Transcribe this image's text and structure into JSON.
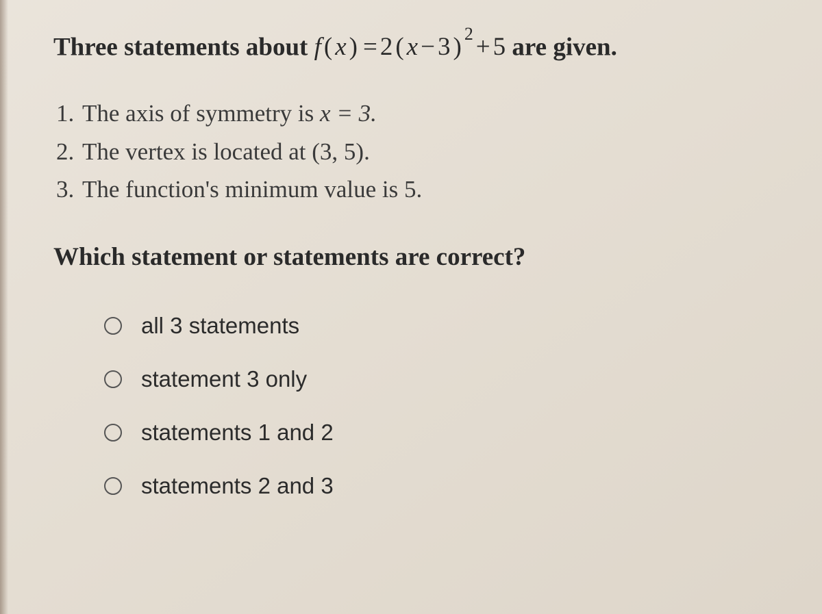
{
  "intro_prefix": "Three statements about ",
  "intro_suffix": " are given.",
  "function_expr": {
    "lhs_f": "f",
    "lhs_var": "x",
    "coef": "2",
    "inner_var": "x",
    "inner_op": "−",
    "inner_const": "3",
    "exp": "2",
    "tail_op": "+",
    "tail_const": "5"
  },
  "statements": [
    {
      "n": "1.",
      "text": "The axis of symmetry is ",
      "math_tail": "x = 3."
    },
    {
      "n": "2.",
      "text": "The vertex is located at (3, 5)."
    },
    {
      "n": "3.",
      "text": "The function's minimum value is 5."
    }
  ],
  "question2": "Which statement or statements are correct?",
  "options": [
    "all 3 statements",
    "statement 3 only",
    "statements 1 and 2",
    "statements 2 and 3"
  ],
  "colors": {
    "page_bg": "#e4ddd2",
    "text_main": "#2a2a2a",
    "text_body": "#3a3a3a",
    "radio_border": "#555"
  },
  "typography": {
    "heading_fontsize_pt": 28,
    "body_fontsize_pt": 26,
    "option_fontsize_pt": 25,
    "heading_weight": "bold",
    "body_family_serif": "Georgia",
    "option_family_sans": "Helvetica Neue"
  }
}
